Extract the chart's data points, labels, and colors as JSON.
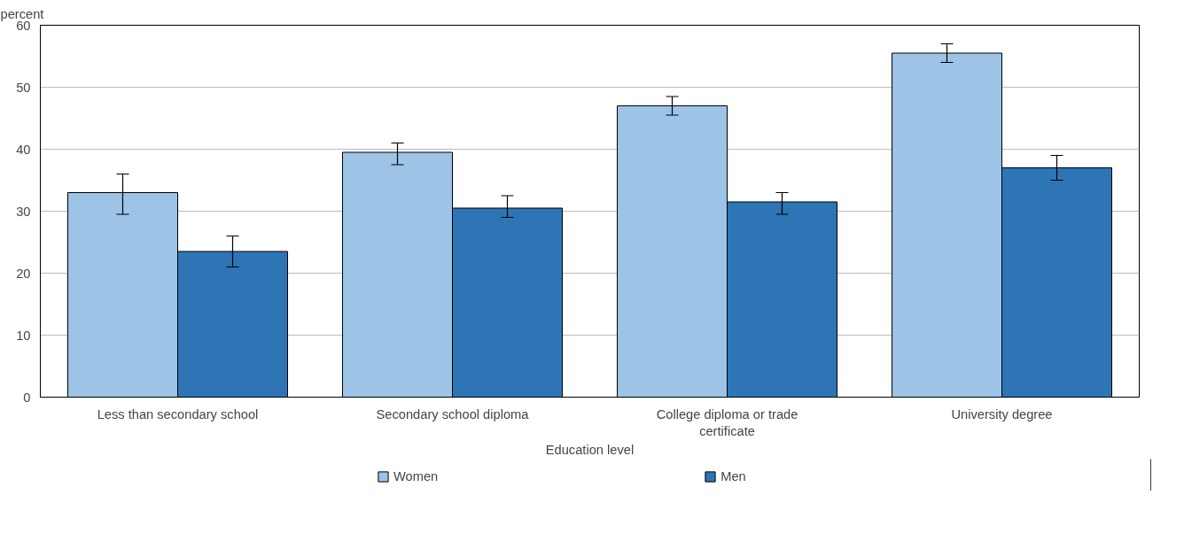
{
  "chart_data": {
    "type": "bar",
    "ylabel": "percent",
    "xlabel": "Education level",
    "categories": [
      "Less than secondary school",
      "Secondary school diploma",
      "College diploma or trade certificate",
      "University degree"
    ],
    "series": [
      {
        "name": "Women",
        "color": "#9dc3e6",
        "values": [
          33,
          39.5,
          47,
          55.5
        ],
        "errors": [
          [
            29.5,
            36
          ],
          [
            37.5,
            41
          ],
          [
            45.5,
            48.5
          ],
          [
            54,
            57
          ]
        ]
      },
      {
        "name": "Men",
        "color": "#2e75b6",
        "values": [
          23.5,
          30.5,
          31.5,
          37
        ],
        "errors": [
          [
            21,
            26
          ],
          [
            29,
            32.5
          ],
          [
            29.5,
            33
          ],
          [
            35,
            39
          ]
        ]
      }
    ],
    "ylim": [
      0,
      60
    ],
    "yticks": [
      0,
      10,
      20,
      30,
      40,
      50,
      60
    ],
    "grid": "y",
    "legend": "bottom"
  }
}
